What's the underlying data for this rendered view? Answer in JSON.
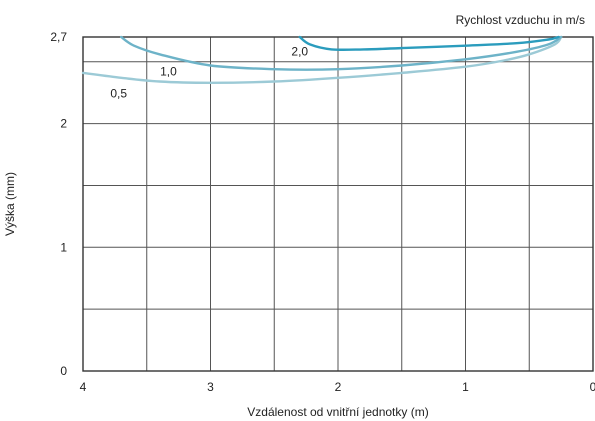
{
  "chart_data": {
    "type": "line",
    "title": "",
    "subtitle": "Rychlost vzduchu in m/s",
    "xlabel": "Vzdálenost od vnitřní jednotky (m)",
    "ylabel": "Výška (mm)",
    "xlim": [
      4,
      0
    ],
    "ylim": [
      0,
      2.7
    ],
    "x_tick_labels": [
      "4",
      "3",
      "2",
      "1",
      "0"
    ],
    "y_tick_labels": [
      "0",
      "1",
      "2",
      "2,7"
    ],
    "x_grid_lines": [
      4,
      3.5,
      3,
      2.5,
      2,
      1.5,
      1,
      0.5,
      0
    ],
    "y_grid_lines": [
      0,
      0.5,
      1,
      1.5,
      2,
      2.5,
      2.7
    ],
    "grid": true,
    "series": [
      {
        "name": "0,5",
        "color": "#9ccad6",
        "label_at": {
          "x": 3.72,
          "y": 2.21
        },
        "points": [
          [
            4.0,
            2.41
          ],
          [
            3.7,
            2.37
          ],
          [
            3.4,
            2.34
          ],
          [
            3.0,
            2.33
          ],
          [
            2.5,
            2.34
          ],
          [
            2.0,
            2.37
          ],
          [
            1.5,
            2.41
          ],
          [
            1.0,
            2.46
          ],
          [
            0.7,
            2.51
          ],
          [
            0.5,
            2.56
          ],
          [
            0.3,
            2.64
          ],
          [
            0.25,
            2.7
          ]
        ]
      },
      {
        "name": "1,0",
        "color": "#6db3c8",
        "label_at": {
          "x": 3.33,
          "y": 2.39
        },
        "points": [
          [
            3.7,
            2.7
          ],
          [
            3.6,
            2.63
          ],
          [
            3.4,
            2.56
          ],
          [
            3.0,
            2.47
          ],
          [
            2.5,
            2.44
          ],
          [
            2.0,
            2.44
          ],
          [
            1.5,
            2.47
          ],
          [
            1.0,
            2.52
          ],
          [
            0.6,
            2.58
          ],
          [
            0.35,
            2.64
          ],
          [
            0.25,
            2.7
          ]
        ]
      },
      {
        "name": "2,0",
        "color": "#2b9cbd",
        "label_at": {
          "x": 2.3,
          "y": 2.55
        },
        "points": [
          [
            2.3,
            2.7
          ],
          [
            2.22,
            2.64
          ],
          [
            2.05,
            2.6
          ],
          [
            1.8,
            2.6
          ],
          [
            1.5,
            2.61
          ],
          [
            1.0,
            2.63
          ],
          [
            0.6,
            2.65
          ],
          [
            0.35,
            2.68
          ],
          [
            0.27,
            2.7
          ]
        ]
      }
    ]
  }
}
